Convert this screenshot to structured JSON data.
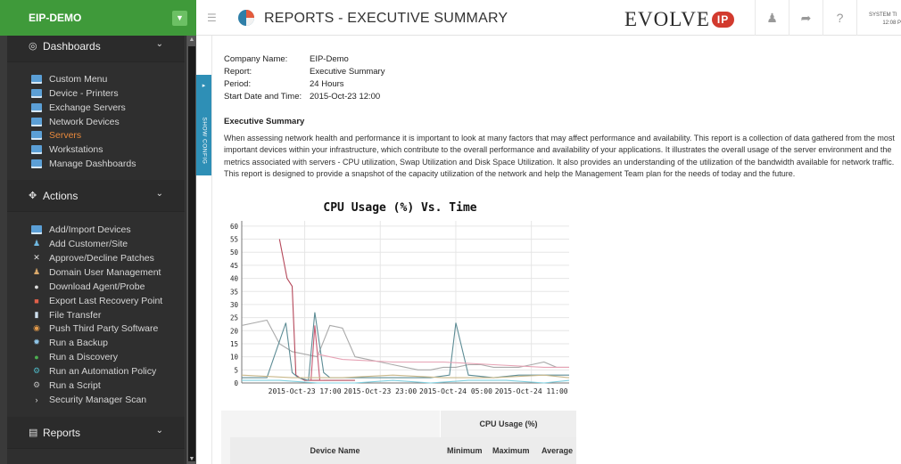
{
  "sidebar": {
    "brand": "EIP-DEMO",
    "sections": [
      {
        "title": "Dashboards",
        "items": [
          {
            "label": "Custom Menu",
            "icon": "monitor-icon"
          },
          {
            "label": "Device - Printers",
            "icon": "monitor-icon"
          },
          {
            "label": "Exchange Servers",
            "icon": "monitor-icon"
          },
          {
            "label": "Network Devices",
            "icon": "monitor-icon"
          },
          {
            "label": "Servers",
            "icon": "monitor-icon",
            "active": true
          },
          {
            "label": "Workstations",
            "icon": "monitor-icon"
          },
          {
            "label": "Manage Dashboards",
            "icon": "monitor-icon"
          }
        ]
      },
      {
        "title": "Actions",
        "items": [
          {
            "label": "Add/Import Devices",
            "icon": "add-device-icon"
          },
          {
            "label": "Add Customer/Site",
            "icon": "customer-icon"
          },
          {
            "label": "Approve/Decline Patches",
            "icon": "patch-icon"
          },
          {
            "label": "Domain User Management",
            "icon": "user-icon"
          },
          {
            "label": "Download Agent/Probe",
            "icon": "download-icon"
          },
          {
            "label": "Export Last Recovery Point",
            "icon": "export-icon"
          },
          {
            "label": "File Transfer",
            "icon": "file-icon"
          },
          {
            "label": "Push Third Party Software",
            "icon": "push-icon"
          },
          {
            "label": "Run a Backup",
            "icon": "backup-icon"
          },
          {
            "label": "Run a Discovery",
            "icon": "discovery-icon"
          },
          {
            "label": "Run an Automation Policy",
            "icon": "automation-icon"
          },
          {
            "label": "Run a Script",
            "icon": "script-icon"
          },
          {
            "label": "Security Manager Scan",
            "icon": "security-icon"
          }
        ]
      },
      {
        "title": "Reports",
        "items": []
      }
    ],
    "show_config_label": "SHOW CONFIG"
  },
  "header": {
    "title": "REPORTS - EXECUTIVE SUMMARY",
    "logo_text": "EVOLVE",
    "logo_badge": "IP",
    "system_time_label": "SYSTEM TI",
    "system_time_value": "12:08 P"
  },
  "report": {
    "meta": [
      {
        "key": "Company Name:",
        "value": "EIP-Demo"
      },
      {
        "key": "Report:",
        "value": "Executive Summary"
      },
      {
        "key": "Period:",
        "value": "24 Hours"
      },
      {
        "key": "Start Date and Time:",
        "value": "2015-Oct-23 12:00"
      }
    ],
    "summary_title": "Executive Summary",
    "summary_text": "When assessing network health and performance it is important to look at many factors that may affect performance and availability. This report is a collection of data gathered from the most important devices within your infrastructure, which contribute to the overall performance and availability of your applications. It illustrates the overall usage of the server environment and the metrics associated with servers - CPU utilization, Swap Utilization and Disk Space Utilization. It also provides an understanding of the utilization of the bandwidth available for network traffic. This report is designed to provide a snapshot of the capacity utilization of the network and help the Management Team plan for the needs of today and the future."
  },
  "chart_data": {
    "type": "line",
    "title": "CPU Usage (%) Vs. Time",
    "xlabel": "",
    "ylabel": "",
    "ylim": [
      0,
      62
    ],
    "yticks": [
      0,
      5,
      10,
      15,
      20,
      25,
      30,
      35,
      40,
      45,
      50,
      55,
      60
    ],
    "xlim": [
      0,
      26
    ],
    "xticks": [
      {
        "x": 5,
        "label": "2015-Oct-23 17:00"
      },
      {
        "x": 11,
        "label": "2015-Oct-23 23:00"
      },
      {
        "x": 17,
        "label": "2015-Oct-24 05:00"
      },
      {
        "x": 23,
        "label": "2015-Oct-24 11:00"
      }
    ],
    "grid": true,
    "series": [
      {
        "color": "#aaaaaa",
        "x": [
          0,
          1,
          2,
          3,
          4,
          5,
          6,
          7,
          8,
          9,
          10,
          11,
          12,
          13,
          14,
          15,
          16,
          17,
          18,
          19,
          20,
          21,
          22,
          23,
          24,
          25,
          26
        ],
        "y": [
          22,
          23,
          24,
          15,
          12,
          11,
          10,
          22,
          21,
          10,
          9,
          8,
          7,
          6,
          5,
          5,
          6,
          6,
          7,
          7,
          6,
          6,
          6,
          7,
          8,
          6,
          6
        ]
      },
      {
        "color": "#b5485a",
        "x": [
          3,
          3.6,
          4,
          4.3,
          4.6,
          5,
          6,
          7,
          8,
          9
        ],
        "y": [
          55,
          40,
          37,
          3,
          2,
          1,
          1,
          1,
          1,
          1
        ]
      },
      {
        "color": "#5d8c95",
        "x": [
          0,
          2,
          3.5,
          4,
          4.5,
          5.3,
          5.8,
          6.5,
          7,
          9,
          12,
          15,
          16.5,
          17,
          18,
          20,
          22,
          24,
          26
        ],
        "y": [
          2,
          2,
          23,
          4,
          2,
          1,
          27,
          4,
          2,
          2,
          2,
          2,
          3,
          23,
          3,
          2,
          3,
          3,
          3
        ]
      },
      {
        "color": "#c85c74",
        "x": [
          5.5,
          5.8,
          6.2,
          6.5
        ],
        "y": [
          1,
          22,
          1,
          1
        ]
      },
      {
        "color": "#7fd0e0",
        "x": [
          0,
          3,
          6,
          9,
          12,
          15,
          18,
          21,
          24,
          26
        ],
        "y": [
          1,
          1,
          0,
          0,
          1,
          0,
          1,
          1,
          0,
          1
        ]
      },
      {
        "color": "#c9b88a",
        "x": [
          0,
          4,
          8,
          12,
          16,
          20,
          24,
          26
        ],
        "y": [
          3,
          2,
          2,
          3,
          2,
          2,
          3,
          2
        ]
      },
      {
        "color": "#e6a2b4",
        "x": [
          6,
          8,
          12,
          16,
          20,
          24,
          26
        ],
        "y": [
          11,
          9,
          8,
          8,
          7,
          6,
          6
        ]
      }
    ]
  },
  "table": {
    "group_header": "CPU Usage (%)",
    "col_device": "Device Name",
    "col_min": "Minimum",
    "col_max": "Maximum",
    "col_avg": "Average"
  }
}
